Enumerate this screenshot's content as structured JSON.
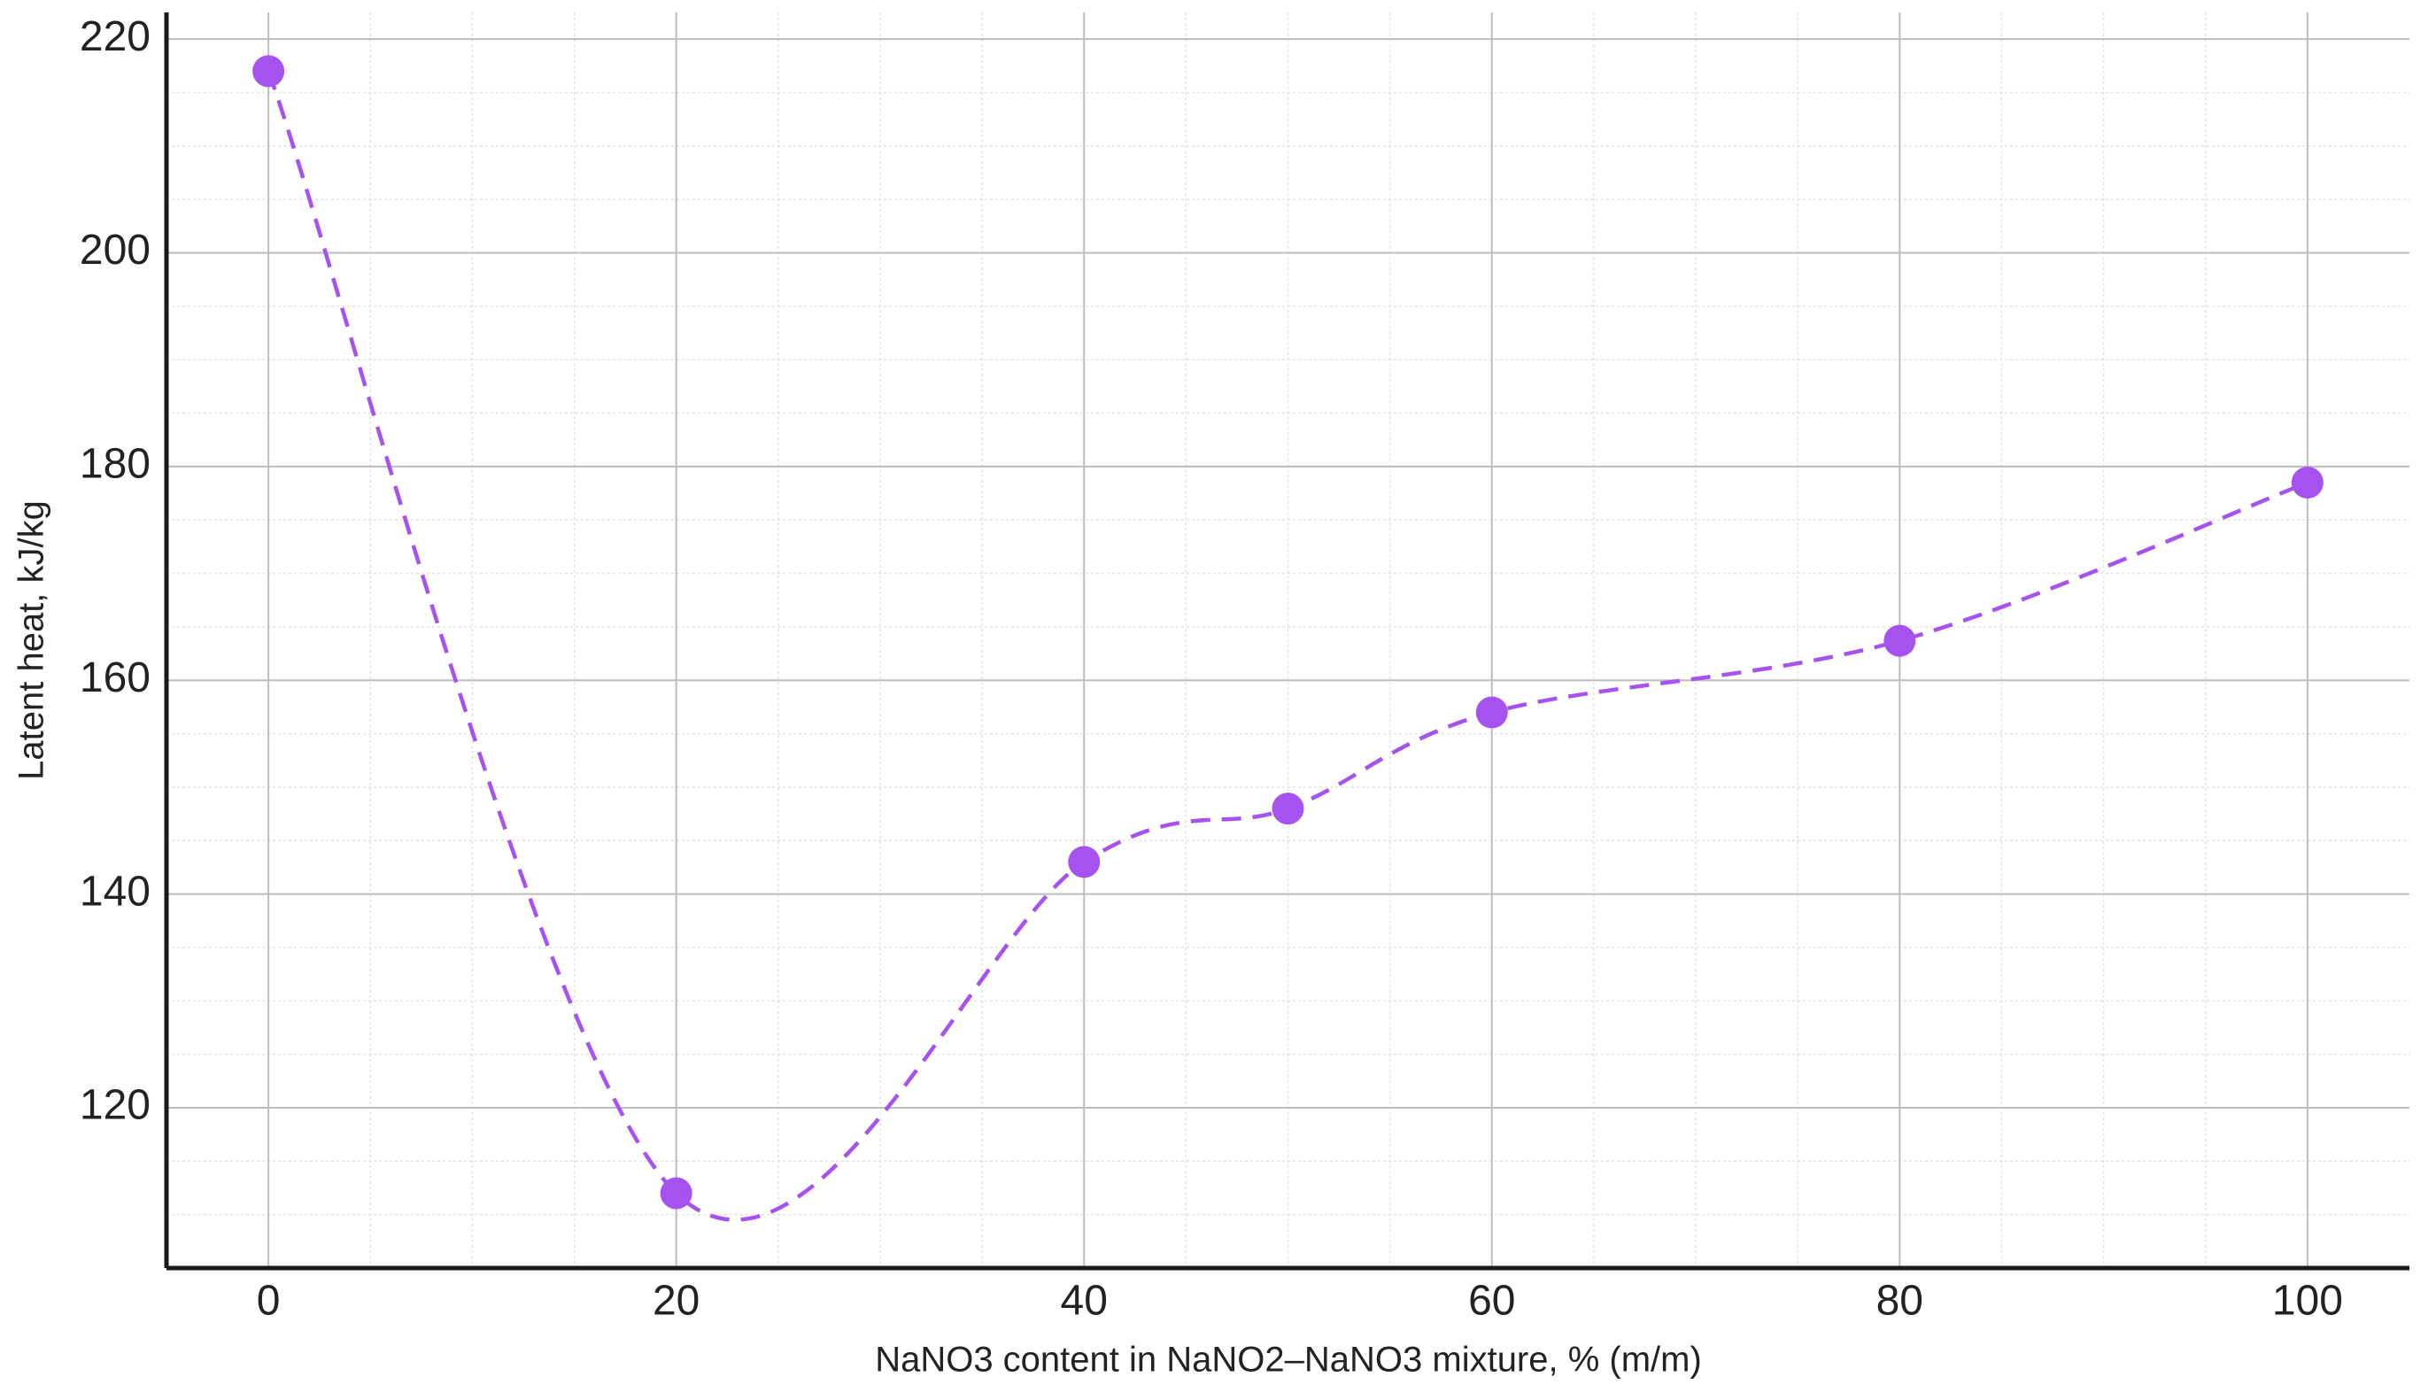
{
  "chart_data": {
    "type": "line",
    "x_label": "NaNO3 content in NaNO2–NaNO3 mixture, % (m/m)",
    "y_label": "Latent heat, kJ/kg",
    "x": [
      0,
      20,
      40,
      50,
      60,
      80,
      100
    ],
    "series": [
      {
        "color": "#a552f0",
        "values": [
          217,
          112,
          143,
          148,
          157,
          163.7,
          178.5
        ]
      }
    ],
    "xlim": [
      -5,
      105
    ],
    "ylim": [
      105,
      222.5
    ],
    "xticks": [
      0,
      20,
      40,
      60,
      80,
      100
    ],
    "yticks": [
      120,
      140,
      160,
      180,
      200,
      220
    ],
    "grid": true,
    "minor_grid": true,
    "line_style": "dashed",
    "markers": true
  }
}
